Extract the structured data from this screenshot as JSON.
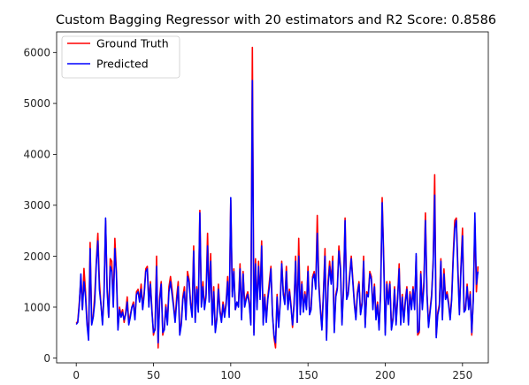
{
  "chart_data": {
    "type": "line",
    "title": "Custom Bagging Regressor with 20 estimators and R2 Score: 0.8586",
    "xlabel": "",
    "ylabel": "",
    "xlim": [
      -12.7,
      266.7
    ],
    "ylim": [
      -95,
      6405
    ],
    "xticks": [
      0,
      50,
      100,
      150,
      200,
      250
    ],
    "yticks": [
      0,
      1000,
      2000,
      3000,
      4000,
      5000,
      6000
    ],
    "grid": false,
    "legend_position": "top-left",
    "series": [
      {
        "name": "Ground Truth",
        "color": "#ff0000",
        "values": [
          680,
          720,
          1100,
          1560,
          950,
          1760,
          1300,
          700,
          450,
          2270,
          700,
          820,
          1260,
          1900,
          2450,
          1500,
          1050,
          700,
          1300,
          2700,
          1400,
          800,
          1950,
          1900,
          1050,
          2350,
          1700,
          600,
          1000,
          850,
          950,
          700,
          900,
          1200,
          700,
          850,
          1000,
          1100,
          800,
          1300,
          1350,
          1150,
          1450,
          1000,
          1300,
          1750,
          1800,
          1100,
          1500,
          950,
          450,
          600,
          2000,
          200,
          1200,
          1500,
          450,
          600,
          1050,
          700,
          1400,
          1600,
          1350,
          1050,
          750,
          1200,
          1500,
          500,
          700,
          1200,
          1400,
          800,
          1700,
          1550,
          1100,
          850,
          2200,
          750,
          1400,
          950,
          2900,
          1050,
          1500,
          1000,
          1250,
          2450,
          1150,
          2050,
          700,
          1400,
          550,
          800,
          1450,
          950,
          750,
          1100,
          850,
          1100,
          1600,
          850,
          3100,
          1300,
          1750,
          950,
          1100,
          1050,
          1850,
          800,
          1700,
          1050,
          1200,
          1300,
          1100,
          700,
          6100,
          500,
          1950,
          1000,
          1900,
          1200,
          2300,
          700,
          1250,
          750,
          1200,
          1500,
          1800,
          900,
          400,
          200,
          1250,
          650,
          1100,
          1900,
          1300,
          1100,
          1800,
          1000,
          1350,
          1050,
          600,
          1100,
          2000,
          700,
          2350,
          900,
          1500,
          950,
          1300,
          1000,
          1800,
          900,
          1000,
          1600,
          1700,
          1400,
          2800,
          1500,
          1000,
          600,
          1300,
          2150,
          400,
          1500,
          1900,
          1500,
          2000,
          550,
          1250,
          1400,
          2200,
          1800,
          700,
          1400,
          2750,
          1200,
          1300,
          1650,
          2000,
          1550,
          1100,
          800,
          1300,
          1500,
          900,
          1100,
          2000,
          650,
          1300,
          1250,
          1700,
          1600,
          1000,
          1450,
          800,
          1100,
          600,
          1300,
          3150,
          2000,
          500,
          1500,
          1100,
          1500,
          600,
          800,
          1400,
          700,
          1200,
          1850,
          700,
          1250,
          750,
          1150,
          1400,
          700,
          1300,
          1000,
          1400,
          1000,
          2000,
          450,
          500,
          1700,
          1000,
          1500,
          2850,
          1300,
          650,
          950,
          1250,
          1900,
          3600,
          450,
          900,
          1050,
          1950,
          800,
          1750,
          1200,
          1300,
          1100,
          800,
          1200,
          2050,
          2700,
          2750,
          1800,
          900,
          1800,
          2550,
          950,
          1000,
          1450,
          1000,
          1300,
          450,
          1200,
          2650,
          1300,
          1800
        ]
      },
      {
        "name": "Predicted",
        "color": "#0000ff",
        "values": [
          660,
          700,
          1050,
          1650,
          950,
          1500,
          1200,
          650,
          350,
          2150,
          650,
          800,
          1100,
          1850,
          2300,
          1350,
          1050,
          650,
          1250,
          2750,
          1300,
          800,
          1800,
          1700,
          1000,
          2150,
          1650,
          550,
          950,
          800,
          900,
          750,
          850,
          1100,
          650,
          800,
          1000,
          1050,
          750,
          1250,
          1300,
          1100,
          1350,
          950,
          1250,
          1700,
          1750,
          1000,
          1450,
          900,
          500,
          550,
          1800,
          300,
          1100,
          1450,
          500,
          550,
          1000,
          650,
          1300,
          1500,
          1250,
          1000,
          700,
          1100,
          1400,
          450,
          650,
          1150,
          1300,
          750,
          1600,
          1500,
          1050,
          800,
          2100,
          700,
          1350,
          900,
          2850,
          1000,
          1400,
          950,
          1200,
          2200,
          1100,
          1900,
          650,
          1300,
          500,
          750,
          1350,
          900,
          700,
          1050,
          800,
          1050,
          1500,
          800,
          3150,
          1200,
          1700,
          950,
          1100,
          1000,
          1750,
          750,
          1650,
          1000,
          1150,
          1250,
          1050,
          650,
          5450,
          450,
          1850,
          950,
          1800,
          1150,
          2200,
          650,
          1200,
          700,
          1150,
          1400,
          1750,
          850,
          450,
          300,
          1200,
          600,
          1050,
          1850,
          1250,
          1050,
          1700,
          950,
          1300,
          1000,
          650,
          1050,
          1900,
          700,
          2000,
          850,
          1450,
          900,
          1250,
          950,
          1700,
          850,
          950,
          1550,
          1650,
          1350,
          2450,
          1400,
          950,
          550,
          1250,
          2000,
          350,
          1400,
          1800,
          1450,
          1900,
          500,
          1200,
          1350,
          2100,
          1750,
          650,
          1350,
          2700,
          1150,
          1250,
          1600,
          1950,
          1500,
          1050,
          750,
          1250,
          1450,
          850,
          1050,
          1900,
          600,
          1250,
          1200,
          1650,
          1550,
          950,
          1400,
          750,
          1050,
          550,
          1250,
          3050,
          1900,
          450,
          1450,
          1050,
          1450,
          550,
          750,
          1350,
          650,
          1150,
          1750,
          650,
          1200,
          700,
          1100,
          1350,
          650,
          1250,
          950,
          1350,
          950,
          2050,
          500,
          550,
          1650,
          950,
          1400,
          2700,
          1250,
          600,
          900,
          1200,
          1850,
          3200,
          400,
          850,
          1000,
          1900,
          750,
          1650,
          1150,
          1250,
          1050,
          750,
          1150,
          1950,
          2550,
          2700,
          1700,
          850,
          1750,
          2400,
          900,
          950,
          1400,
          950,
          1250,
          500,
          1150,
          2850,
          1450,
          1700
        ]
      }
    ]
  }
}
